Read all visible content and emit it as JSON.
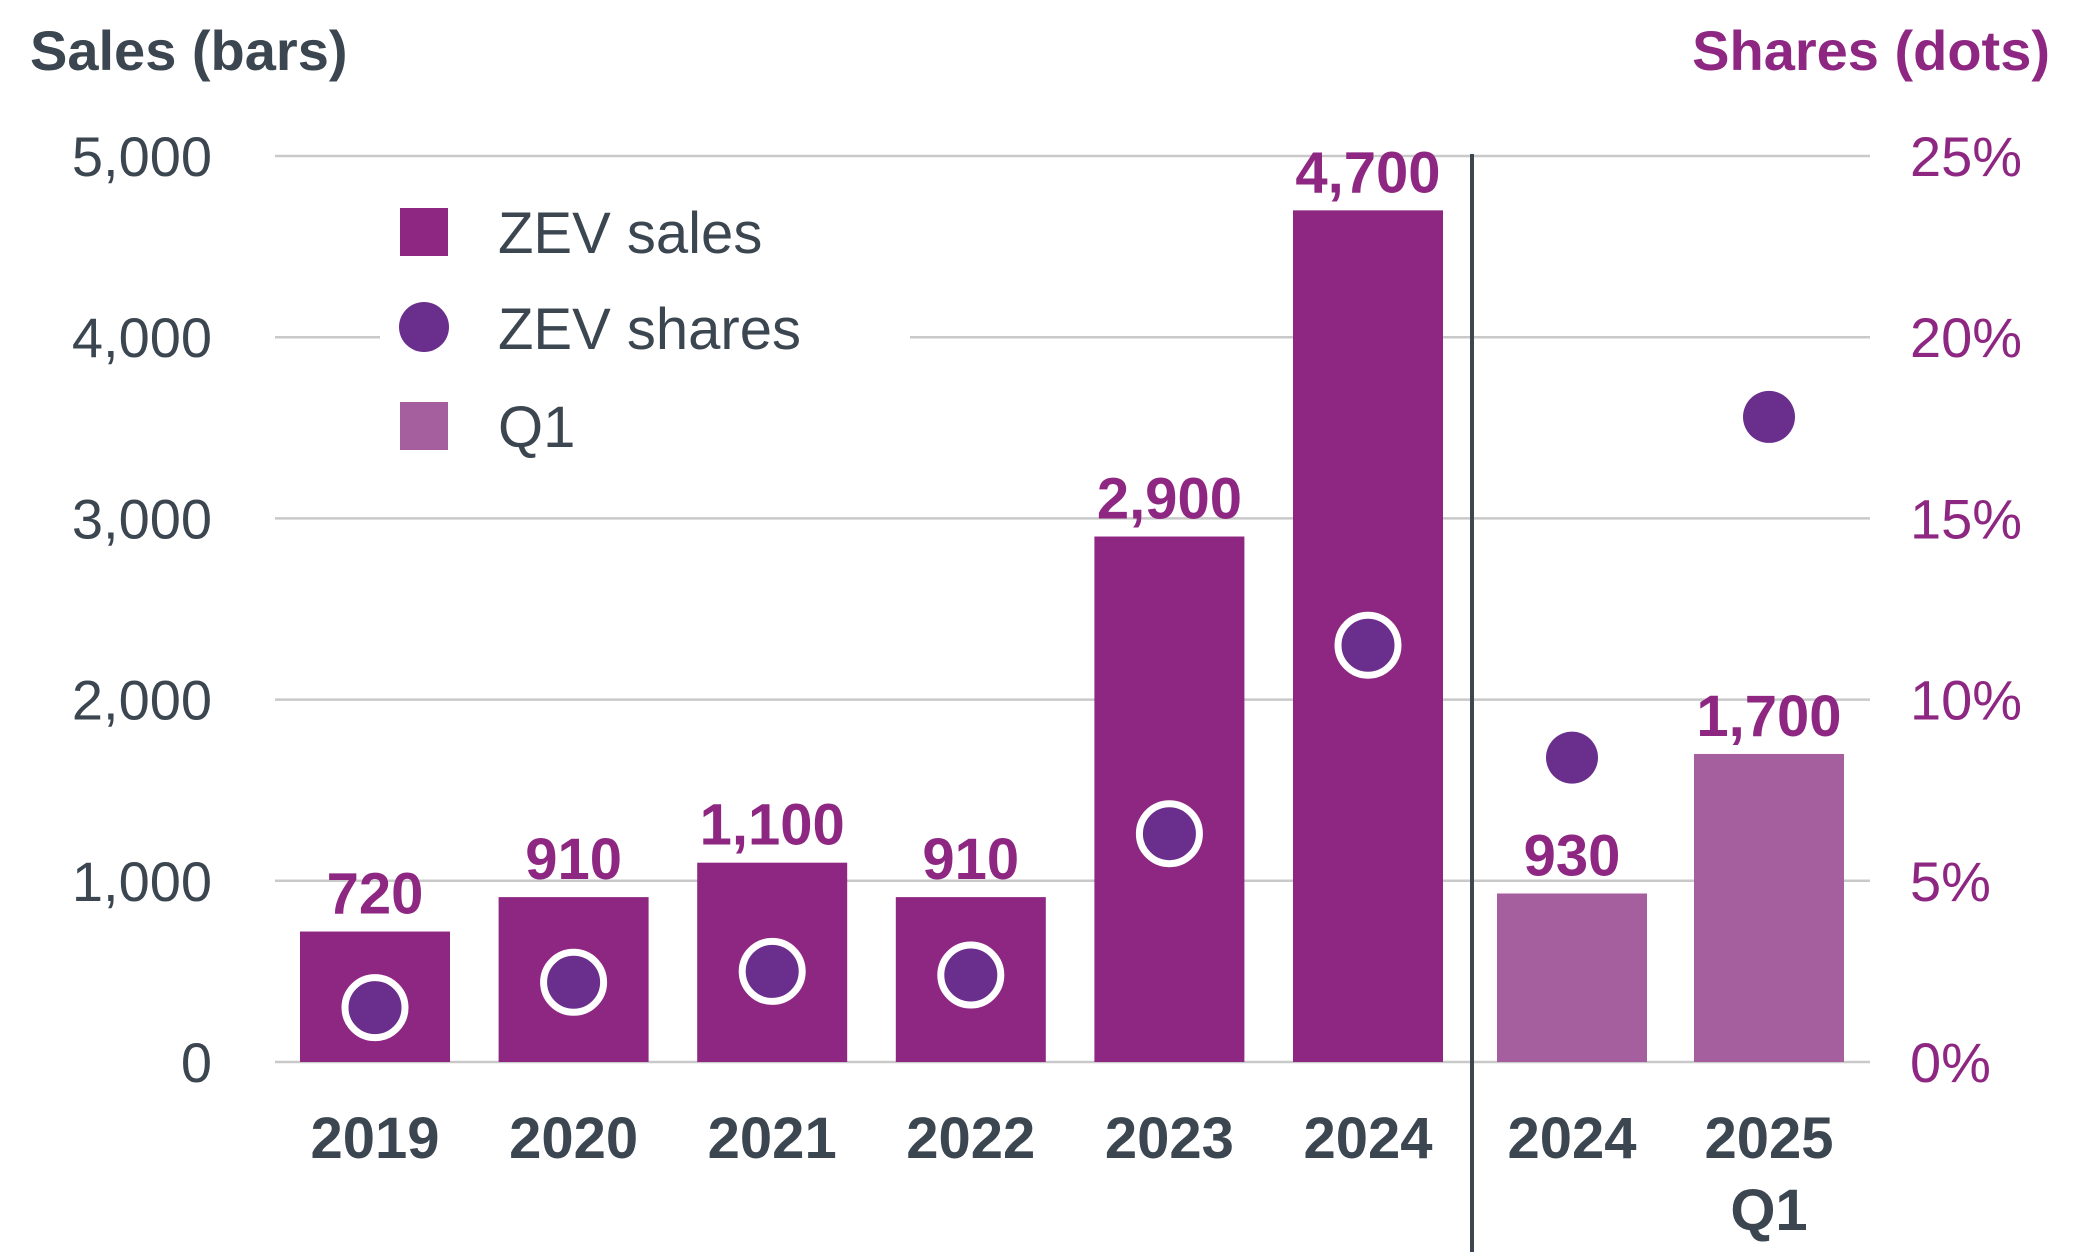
{
  "chart_data": {
    "type": "bar",
    "left_axis_title": "Sales (bars)",
    "right_axis_title": "Shares (dots)",
    "ylim": [
      0,
      5000
    ],
    "y2lim": [
      0,
      25
    ],
    "y_ticks": [
      "0",
      "1,000",
      "2,000",
      "3,000",
      "4,000",
      "5,000"
    ],
    "y2_ticks": [
      "0%",
      "5%",
      "10%",
      "15%",
      "20%",
      "25%"
    ],
    "legend": [
      {
        "label": "ZEV sales",
        "marker": "square",
        "color": "#8e2782"
      },
      {
        "label": "ZEV shares",
        "marker": "circle",
        "color": "#6a2e8c"
      },
      {
        "label": "Q1",
        "marker": "square",
        "color": "#a65f9e"
      }
    ],
    "divider_after": "2024",
    "series": [
      {
        "name": "ZEV sales",
        "color": "#8e2782",
        "categories": [
          "2019",
          "2020",
          "2021",
          "2022",
          "2023",
          "2024"
        ],
        "values": [
          720,
          910,
          1100,
          910,
          2900,
          4700
        ],
        "labels": [
          "720",
          "910",
          "1,100",
          "910",
          "2,900",
          "4,700"
        ],
        "shares": [
          1.5,
          2.2,
          2.5,
          2.4,
          6.3,
          11.5
        ]
      },
      {
        "name": "Q1",
        "color": "#a65f9e",
        "categories": [
          "2024",
          "2025"
        ],
        "sublabels": [
          "",
          "Q1"
        ],
        "values": [
          930,
          1700
        ],
        "labels": [
          "930",
          "1,700"
        ],
        "shares": [
          8.4,
          17.8
        ]
      }
    ],
    "share_color": "#6a2e8c"
  }
}
